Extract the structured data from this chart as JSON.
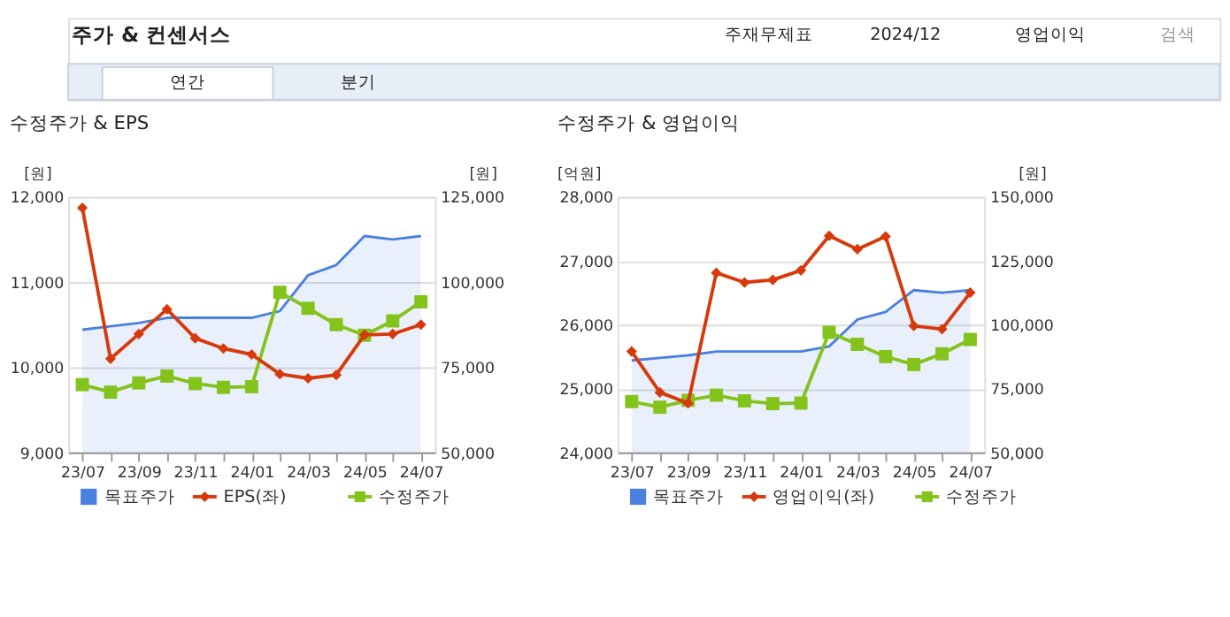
{
  "chart_data": [
    {
      "type": "line",
      "title": "수정주가 & EPS",
      "ylabel": "[원]",
      "y2label": "[원]",
      "annotations": [
        "주가 & 컨센서스",
        "주재무제표",
        "2024/12",
        "영업이익",
        "검색",
        "연간",
        "분기"
      ],
      "categories": [
        "23/07",
        null,
        "23/09",
        null,
        "23/11",
        null,
        "24/01",
        null,
        "24/03",
        null,
        "24/05",
        null,
        "24/07"
      ],
      "series": [
        {
          "name": "목표주가",
          "type": "area",
          "axis": "y2",
          "color": "#4a80e0",
          "marker": "none",
          "values": [
            86000,
            87000,
            88000,
            89500,
            89500,
            89500,
            89500,
            91500,
            102000,
            105000,
            113500,
            112500,
            113500
          ]
        },
        {
          "name": "EPS(좌)",
          "color": "#d63a0c",
          "marker": "diamond",
          "values": [
            11870,
            10100,
            10390,
            10680,
            10340,
            10220,
            10150,
            9920,
            9870,
            9910,
            10380,
            10390,
            10500
          ]
        },
        {
          "name": "수정주가",
          "axis": "y2",
          "color": "#84c21c",
          "marker": "square",
          "values": [
            69900,
            67700,
            70400,
            72400,
            70200,
            69100,
            69300,
            97000,
            92300,
            87500,
            84400,
            88600,
            94200
          ]
        }
      ],
      "ylim": [
        9000,
        12000
      ],
      "yticks": [
        {
          "value": 9000,
          "label": "9,000"
        },
        {
          "value": 10000,
          "label": "10,000"
        },
        {
          "value": 11000,
          "label": "11,000"
        },
        {
          "value": 12000,
          "label": "12,000"
        }
      ],
      "y2lim": [
        50000,
        125000
      ],
      "y2ticks": [
        {
          "value": 50000,
          "label": "50,000"
        },
        {
          "value": 75000,
          "label": "75,000"
        },
        {
          "value": 100000,
          "label": "100,000"
        },
        {
          "value": 125000,
          "label": "125,000"
        }
      ],
      "grid": "y",
      "legend": "bottom"
    },
    {
      "type": "line",
      "title": "수정주가 & 영업이익",
      "ylabel": "[억원]",
      "y2label": "[원]",
      "categories": [
        "23/07",
        null,
        "23/09",
        null,
        "23/11",
        null,
        "24/01",
        null,
        "24/03",
        null,
        "24/05",
        null,
        "24/07"
      ],
      "series": [
        {
          "name": "목표주가",
          "type": "area",
          "axis": "y2",
          "color": "#4a80e0",
          "marker": "none",
          "values": [
            86000,
            87000,
            88000,
            89500,
            89500,
            89500,
            89500,
            91500,
            102000,
            105000,
            113500,
            112500,
            113500
          ]
        },
        {
          "name": "영업이익(좌)",
          "color": "#d63a0c",
          "marker": "diamond",
          "values": [
            25580,
            24940,
            24770,
            26810,
            26660,
            26700,
            26850,
            27390,
            27180,
            27380,
            25980,
            25930,
            26500
          ]
        },
        {
          "name": "수정주가",
          "axis": "y2",
          "color": "#84c21c",
          "marker": "square",
          "values": [
            69900,
            67700,
            70400,
            72400,
            70200,
            69100,
            69300,
            97000,
            92300,
            87500,
            84400,
            88600,
            94200
          ]
        }
      ],
      "ylim": [
        24000,
        28000
      ],
      "yticks": [
        {
          "value": 24000,
          "label": "24,000"
        },
        {
          "value": 25000,
          "label": "25,000"
        },
        {
          "value": 26000,
          "label": "26,000"
        },
        {
          "value": 27000,
          "label": "27,000"
        },
        {
          "value": 28000,
          "label": "28,000"
        }
      ],
      "y2lim": [
        50000,
        150000
      ],
      "y2ticks": [
        {
          "value": 50000,
          "label": "50,000"
        },
        {
          "value": 75000,
          "label": "75,000"
        },
        {
          "value": 100000,
          "label": "100,000"
        },
        {
          "value": 125000,
          "label": "125,000"
        },
        {
          "value": 150000,
          "label": "150,000"
        }
      ],
      "grid": "y",
      "legend": "bottom"
    }
  ]
}
